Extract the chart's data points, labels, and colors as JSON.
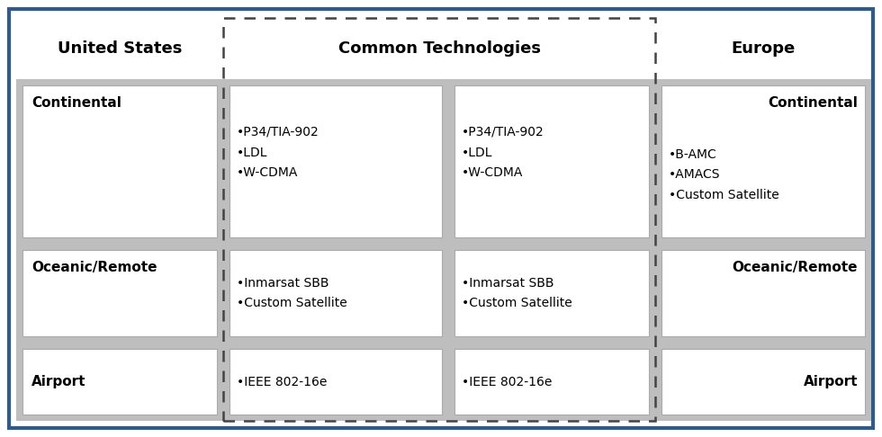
{
  "outer_border_color": "#2E5A8E",
  "background_color": "#FFFFFF",
  "gray_bg": "#BEBEBE",
  "white_bg": "#FFFFFF",
  "header_us": "United States",
  "header_common": "Common Technologies",
  "header_europe": "Europe",
  "us_continental_label": "Continental",
  "us_oceanic_label": "Oceanic/Remote",
  "us_airport_label": "Airport",
  "eu_continental_label": "Continental",
  "eu_oceanic_label": "Oceanic/Remote",
  "eu_airport_label": "Airport",
  "us_continental_techs": [
    "•P34/TIA-902",
    "•LDL",
    "•W-CDMA"
  ],
  "eu_continental_techs_left": [
    "•P34/TIA-902",
    "•LDL",
    "•W-CDMA"
  ],
  "eu_continental_techs_right": [
    "•B-AMC",
    "•AMACS",
    "•Custom Satellite"
  ],
  "us_oceanic_techs": [
    "•Inmarsat SBB",
    "•Custom Satellite"
  ],
  "eu_oceanic_techs": [
    "•Inmarsat SBB",
    "•Custom Satellite"
  ],
  "us_airport_techs": [
    "•IEEE 802-16e"
  ],
  "eu_airport_techs": [
    "•IEEE 802-16e"
  ],
  "header_fontsize": 13,
  "label_fontsize": 11,
  "tech_fontsize": 10
}
